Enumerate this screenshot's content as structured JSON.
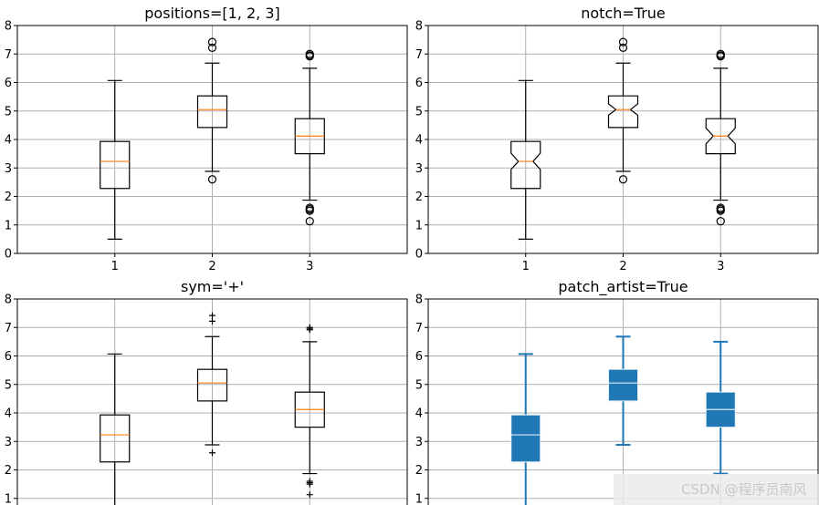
{
  "chart_data": [
    {
      "type": "box",
      "title": "positions=[1, 2, 3]",
      "notch": false,
      "sym": "o",
      "patch_artist": false
    },
    {
      "type": "box",
      "title": "notch=True",
      "notch": true,
      "sym": "o",
      "patch_artist": false
    },
    {
      "type": "box",
      "title": "sym='+'",
      "notch": false,
      "sym": "+",
      "patch_artist": false
    },
    {
      "type": "box",
      "title": "patch_artist=True",
      "notch": false,
      "sym": "",
      "patch_artist": true
    }
  ],
  "shared": {
    "positions": [
      1,
      2,
      3
    ],
    "xticklabels": [
      "1",
      "2",
      "3"
    ],
    "xlim": [
      0,
      4
    ],
    "ylim": [
      0,
      8
    ],
    "yticks": [
      0,
      1,
      2,
      3,
      4,
      5,
      6,
      7,
      8
    ],
    "grid": true,
    "boxes": [
      {
        "whislo": 0.5,
        "q1": 2.28,
        "med": 3.23,
        "q3": 3.93,
        "whishi": 6.07,
        "notch_lo": 2.95,
        "notch_hi": 3.52,
        "fliers": []
      },
      {
        "whislo": 2.88,
        "q1": 4.42,
        "med": 5.05,
        "q3": 5.53,
        "whishi": 6.68,
        "notch_lo": 4.85,
        "notch_hi": 5.25,
        "fliers": [
          7.42,
          7.22,
          2.6
        ]
      },
      {
        "whislo": 1.87,
        "q1": 3.5,
        "med": 4.12,
        "q3": 4.73,
        "whishi": 6.5,
        "notch_lo": 3.85,
        "notch_hi": 4.4,
        "fliers": [
          7.0,
          6.95,
          6.92,
          1.6,
          1.55,
          1.5,
          1.13
        ]
      }
    ]
  },
  "colors": {
    "median": "#ff7f0e",
    "patch": "#1f77b4",
    "grid": "#b0b0b0"
  },
  "watermark": "CSDN @程序员南风"
}
